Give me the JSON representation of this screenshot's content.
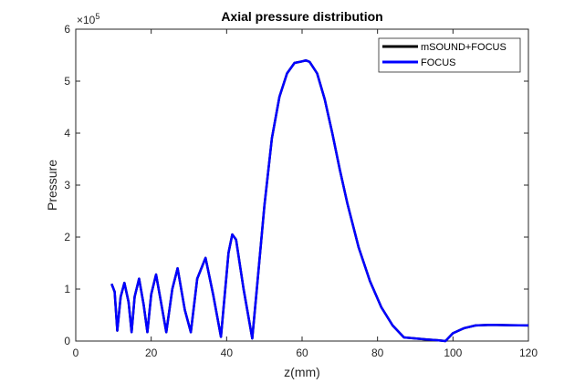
{
  "chart_data": {
    "type": "line",
    "title": "Axial pressure distribution",
    "xlabel": "z(mm)",
    "ylabel": "Pressure",
    "y_exponent_label": "×10",
    "y_exponent_power": "5",
    "xlim": [
      0,
      120
    ],
    "ylim": [
      0,
      600000
    ],
    "x_ticks": [
      0,
      20,
      40,
      60,
      80,
      100,
      120
    ],
    "y_ticks": [
      0,
      100000,
      200000,
      300000,
      400000,
      500000,
      600000
    ],
    "y_tick_labels": [
      "0",
      "1",
      "2",
      "3",
      "4",
      "5",
      "6"
    ],
    "x_tick_labels": [
      "0",
      "20",
      "40",
      "60",
      "80",
      "100",
      "120"
    ],
    "grid": false,
    "legend_position": "top-right",
    "series": [
      {
        "name": "mSOUND+FOCUS",
        "color": "#000000",
        "x": [
          9.5,
          10.3,
          11.0,
          11.9,
          12.9,
          14.0,
          14.8,
          15.6,
          16.8,
          18.0,
          19.0,
          20.0,
          21.3,
          22.6,
          24.0,
          25.6,
          27.0,
          28.9,
          30.5,
          32.2,
          34.4,
          36.4,
          38.5,
          40.5,
          41.5,
          42.5,
          44.5,
          46.8,
          48.0,
          50.0,
          52.0,
          54.0,
          56.0,
          58.0,
          60.0,
          61.0,
          62.0,
          64.0,
          66.0,
          68.0,
          70.0,
          72.0,
          75.0,
          78.0,
          81.0,
          84.0,
          87.0,
          90.0,
          93.0,
          96.0,
          98.0,
          100.0,
          103.0,
          106.0,
          110.0,
          115.0,
          120.0
        ],
        "y": [
          110000,
          95000,
          20000,
          85000,
          112000,
          75000,
          17000,
          85000,
          120000,
          70000,
          17000,
          90000,
          128000,
          75000,
          17000,
          100000,
          140000,
          60000,
          17000,
          120000,
          160000,
          90000,
          8000,
          170000,
          205000,
          195000,
          100000,
          5000,
          100000,
          260000,
          390000,
          470000,
          515000,
          535000,
          538000,
          540000,
          537000,
          515000,
          465000,
          400000,
          330000,
          265000,
          180000,
          115000,
          65000,
          30000,
          7000,
          5000,
          3000,
          1500,
          0,
          15000,
          25000,
          30000,
          31000,
          30500,
          30000
        ]
      },
      {
        "name": "FOCUS",
        "color": "#0000ff",
        "x": [
          9.5,
          10.3,
          11.0,
          11.9,
          12.9,
          14.0,
          14.8,
          15.6,
          16.8,
          18.0,
          19.0,
          20.0,
          21.3,
          22.6,
          24.0,
          25.6,
          27.0,
          28.9,
          30.5,
          32.2,
          34.4,
          36.4,
          38.5,
          40.5,
          41.5,
          42.5,
          44.5,
          46.8,
          48.0,
          50.0,
          52.0,
          54.0,
          56.0,
          58.0,
          60.0,
          61.0,
          62.0,
          64.0,
          66.0,
          68.0,
          70.0,
          72.0,
          75.0,
          78.0,
          81.0,
          84.0,
          87.0,
          90.0,
          93.0,
          96.0,
          98.0,
          100.0,
          103.0,
          106.0,
          110.0,
          115.0,
          120.0
        ],
        "y": [
          110000,
          95000,
          20000,
          85000,
          112000,
          75000,
          17000,
          85000,
          120000,
          70000,
          17000,
          90000,
          128000,
          75000,
          17000,
          100000,
          140000,
          60000,
          17000,
          120000,
          160000,
          90000,
          8000,
          170000,
          205000,
          195000,
          100000,
          5000,
          100000,
          260000,
          390000,
          470000,
          515000,
          535000,
          538000,
          540000,
          537000,
          515000,
          465000,
          400000,
          330000,
          265000,
          180000,
          115000,
          65000,
          30000,
          7000,
          5000,
          3000,
          1500,
          0,
          15000,
          25000,
          30000,
          31000,
          30500,
          30000
        ]
      }
    ]
  }
}
